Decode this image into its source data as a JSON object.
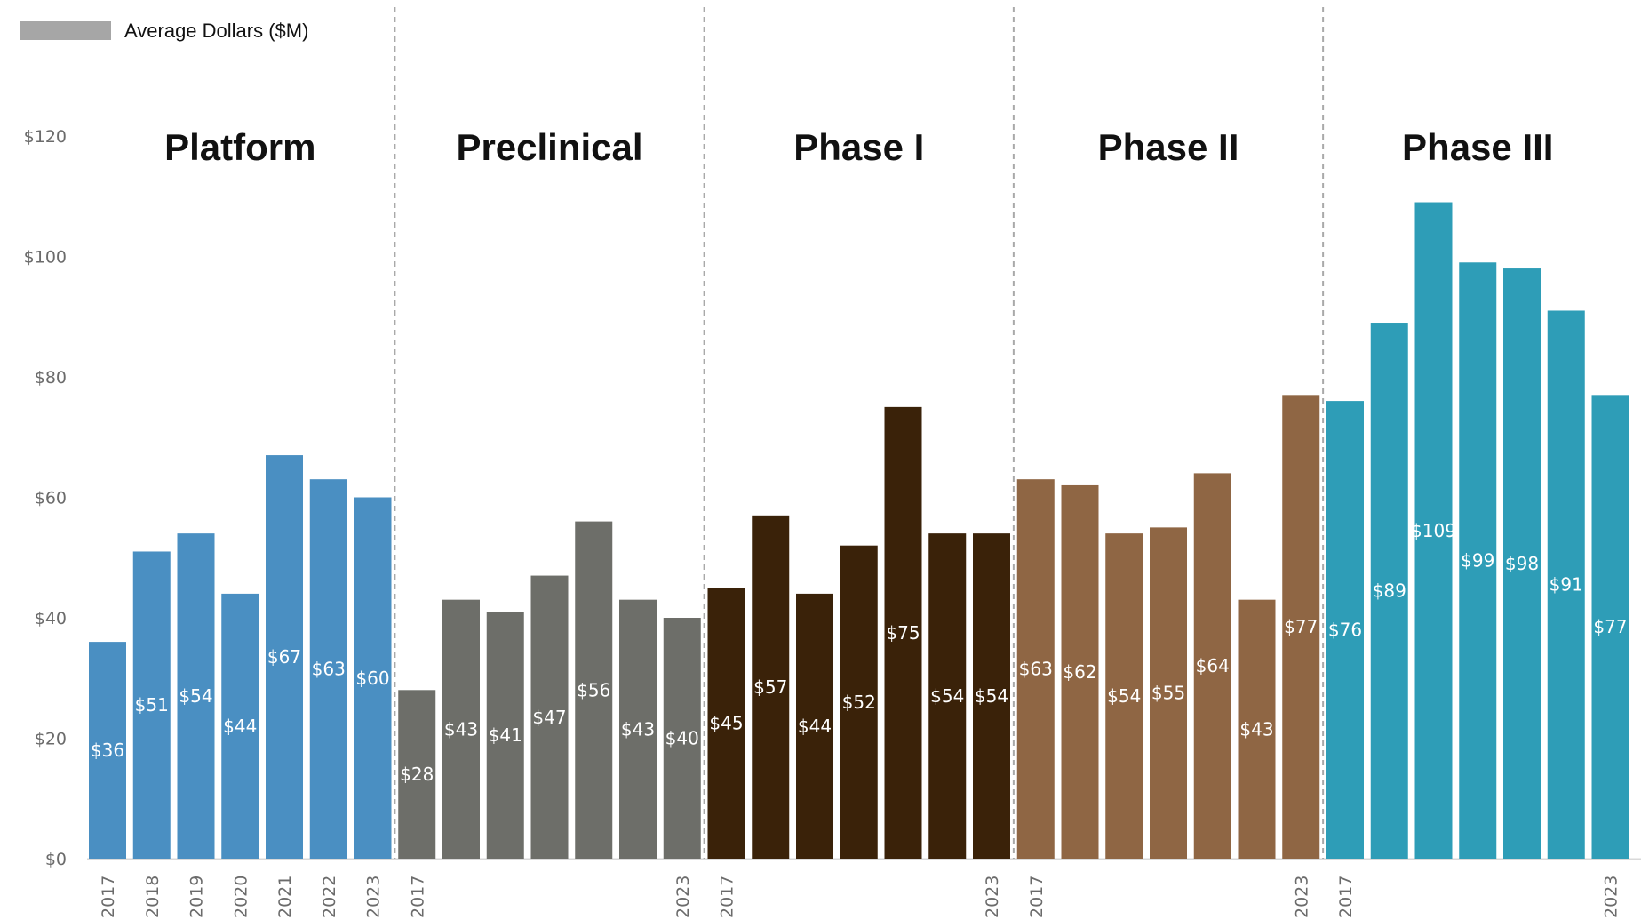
{
  "legend": {
    "label": "Average Dollars ($M)",
    "color": "#a6a6a6"
  },
  "chart_data": {
    "type": "bar",
    "ylabel": "",
    "xlabel": "",
    "ylim": [
      0,
      120
    ],
    "ytick_values": [
      0,
      20,
      40,
      60,
      80,
      100,
      120
    ],
    "ytick_labels": [
      "$0",
      "$20",
      "$40",
      "$60",
      "$80",
      "$100",
      "$120"
    ],
    "grid": false,
    "legend_position": "top-left",
    "groups": [
      {
        "name": "Platform",
        "color": "#4a8fc2",
        "years": [
          "2017",
          "2018",
          "2019",
          "2020",
          "2021",
          "2022",
          "2023"
        ],
        "x_tick_labels": [
          "2017",
          "2018",
          "2019",
          "2020",
          "2021",
          "2022",
          "2023"
        ],
        "values": [
          36,
          51,
          54,
          44,
          67,
          63,
          60
        ],
        "labels": [
          "$36",
          "$51",
          "$54",
          "$44",
          "$67",
          "$63",
          "$60"
        ]
      },
      {
        "name": "Preclinical",
        "color": "#6d6e69",
        "years": [
          "2017",
          "2018",
          "2019",
          "2020",
          "2021",
          "2022",
          "2023"
        ],
        "x_tick_labels": [
          "2017",
          "",
          "",
          "",
          "",
          "",
          "2023"
        ],
        "values": [
          28,
          43,
          41,
          47,
          56,
          43,
          40
        ],
        "labels": [
          "$28",
          "$43",
          "$41",
          "$47",
          "$56",
          "$43",
          "$40"
        ]
      },
      {
        "name": "Phase I",
        "color": "#3a2209",
        "years": [
          "2017",
          "2018",
          "2019",
          "2020",
          "2021",
          "2022",
          "2023"
        ],
        "x_tick_labels": [
          "2017",
          "",
          "",
          "",
          "",
          "",
          "2023"
        ],
        "values": [
          45,
          57,
          44,
          52,
          75,
          54,
          54
        ],
        "labels": [
          "$45",
          "$57",
          "$44",
          "$52",
          "$75",
          "$54",
          "$54"
        ]
      },
      {
        "name": "Phase II",
        "color": "#8f6644",
        "years": [
          "2017",
          "2018",
          "2019",
          "2020",
          "2021",
          "2022",
          "2023"
        ],
        "x_tick_labels": [
          "2017",
          "",
          "",
          "",
          "",
          "",
          "2023"
        ],
        "values": [
          63,
          62,
          54,
          55,
          64,
          43,
          77
        ],
        "labels": [
          "$63",
          "$62",
          "$54",
          "$55",
          "$64",
          "$43",
          "$77"
        ]
      },
      {
        "name": "Phase III",
        "color": "#2e9db7",
        "years": [
          "2017",
          "2018",
          "2019",
          "2020",
          "2021",
          "2022",
          "2023"
        ],
        "x_tick_labels": [
          "2017",
          "",
          "",
          "",
          "",
          "",
          "2023"
        ],
        "values": [
          76,
          89,
          109,
          99,
          98,
          91,
          77
        ],
        "labels": [
          "$76",
          "$89",
          "$109",
          "$99",
          "$98",
          "$91",
          "$77"
        ]
      }
    ]
  }
}
